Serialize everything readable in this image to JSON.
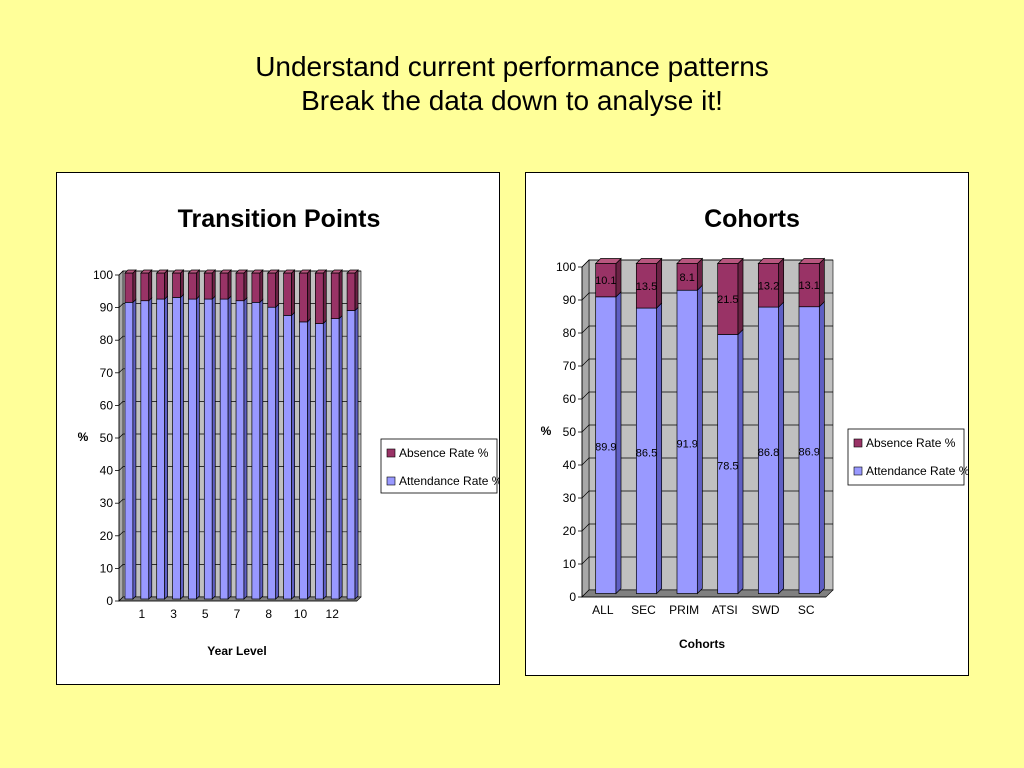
{
  "slide": {
    "title_line1": "Understand current performance patterns",
    "title_line2": "Break the data down to analyse it!"
  },
  "colors": {
    "background": "#ffff99",
    "attendance": "#9999ff",
    "absence": "#993366",
    "plot_area": "#c0c0c0",
    "floor": "#808080"
  },
  "chart_data": [
    {
      "type": "bar",
      "stacked": true,
      "three_d": true,
      "title": "Transition Points",
      "xlabel": "Year Level",
      "ylabel": "%",
      "ylim": [
        0,
        100
      ],
      "yticks": [
        0,
        10,
        20,
        30,
        40,
        50,
        60,
        70,
        80,
        90,
        100
      ],
      "categories": [
        "",
        "1",
        "",
        "3",
        "",
        "5",
        "",
        "7",
        "",
        "8",
        "",
        "10",
        "",
        "12",
        ""
      ],
      "grid": true,
      "legend_position": "right",
      "legend": [
        "Absence Rate %",
        "Attendance Rate %"
      ],
      "series": [
        {
          "name": "Attendance Rate %",
          "color": "#9999ff",
          "values": [
            91,
            91.5,
            92,
            92.5,
            92,
            92,
            92,
            91.5,
            91,
            89.5,
            87,
            85,
            84.5,
            86,
            88.5
          ]
        },
        {
          "name": "Absence Rate %",
          "color": "#993366",
          "values": [
            9,
            8.5,
            8,
            7.5,
            8,
            8,
            8,
            8.5,
            9,
            10.5,
            13,
            15,
            15.5,
            14,
            11.5
          ]
        }
      ]
    },
    {
      "type": "bar",
      "stacked": true,
      "three_d": true,
      "title": "Cohorts",
      "xlabel": "Cohorts",
      "ylabel": "%",
      "ylim": [
        0,
        100
      ],
      "yticks": [
        0,
        10,
        20,
        30,
        40,
        50,
        60,
        70,
        80,
        90,
        100
      ],
      "categories": [
        "ALL",
        "SEC",
        "PRIM",
        "ATSI",
        "SWD",
        "SC"
      ],
      "grid": true,
      "legend_position": "right",
      "legend": [
        "Absence Rate %",
        "Attendance Rate %"
      ],
      "series": [
        {
          "name": "Attendance Rate %",
          "color": "#9999ff",
          "values": [
            89.9,
            86.5,
            91.9,
            78.5,
            86.8,
            86.9
          ],
          "labels": [
            "89.9",
            "86.5",
            "91.9",
            "78.5",
            "86.8",
            "86.9"
          ]
        },
        {
          "name": "Absence Rate %",
          "color": "#993366",
          "values": [
            10.1,
            13.5,
            8.1,
            21.5,
            13.2,
            13.1
          ],
          "labels": [
            "10.1",
            "13.5",
            "8.1",
            "21.5",
            "13.2",
            "13.1"
          ]
        }
      ]
    }
  ]
}
